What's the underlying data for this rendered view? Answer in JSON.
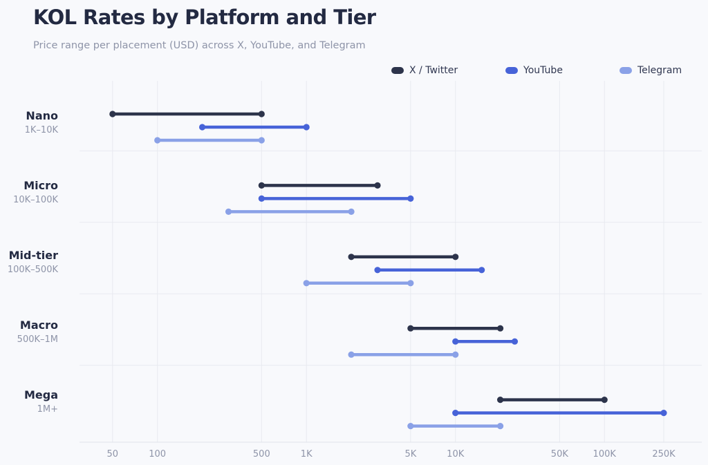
{
  "chart_data": {
    "type": "range_dot",
    "title": "KOL Rates by Platform and Tier",
    "subtitle": "Price range per placement (USD) across X, YouTube, and Telegram",
    "x_scale": "log",
    "xlim": [
      30,
      450000
    ],
    "x_ticks": [
      {
        "value": 50,
        "label": "50"
      },
      {
        "value": 100,
        "label": "100"
      },
      {
        "value": 500,
        "label": "500"
      },
      {
        "value": 1000,
        "label": "1K"
      },
      {
        "value": 5000,
        "label": "5K"
      },
      {
        "value": 10000,
        "label": "10K"
      },
      {
        "value": 50000,
        "label": "50K"
      },
      {
        "value": 100000,
        "label": "100K"
      },
      {
        "value": 250000,
        "label": "250K"
      }
    ],
    "grid": true,
    "legend_position": "top-right",
    "series": [
      {
        "name": "X / Twitter",
        "color": "#2d344b"
      },
      {
        "name": "YouTube",
        "color": "#4763d8"
      },
      {
        "name": "Telegram",
        "color": "#8aa1e7"
      }
    ],
    "categories": [
      {
        "name": "Nano",
        "sub": "1K–10K",
        "ranges": [
          [
            50,
            500
          ],
          [
            200,
            1000
          ],
          [
            100,
            500
          ]
        ]
      },
      {
        "name": "Micro",
        "sub": "10K–100K",
        "ranges": [
          [
            500,
            3000
          ],
          [
            500,
            5000
          ],
          [
            300,
            2000
          ]
        ]
      },
      {
        "name": "Mid-tier",
        "sub": "100K–500K",
        "ranges": [
          [
            2000,
            10000
          ],
          [
            3000,
            15000
          ],
          [
            1000,
            5000
          ]
        ]
      },
      {
        "name": "Macro",
        "sub": "500K–1M",
        "ranges": [
          [
            5000,
            20000
          ],
          [
            10000,
            25000
          ],
          [
            2000,
            10000
          ]
        ]
      },
      {
        "name": "Mega",
        "sub": "1M+",
        "ranges": [
          [
            20000,
            100000
          ],
          [
            10000,
            250000
          ],
          [
            5000,
            20000
          ]
        ]
      }
    ]
  }
}
